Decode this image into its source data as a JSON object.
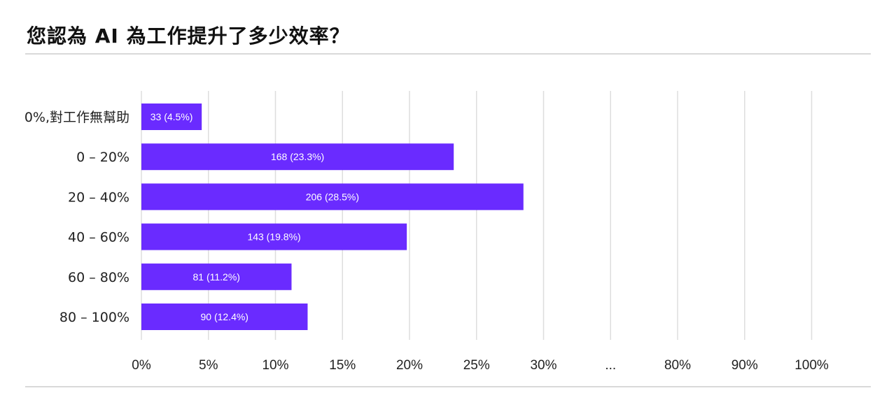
{
  "title": "您認為 AI 為工作提升了多少效率？",
  "chart_data": {
    "type": "bar",
    "orientation": "horizontal",
    "categories": [
      "0%,對工作無幫助",
      "0 – 20%",
      "20 – 40%",
      "40 – 60%",
      "60 – 80%",
      "80 – 100%"
    ],
    "values": [
      4.5,
      23.3,
      28.5,
      19.8,
      11.2,
      12.4
    ],
    "counts": [
      33,
      168,
      206,
      143,
      81,
      90
    ],
    "data_labels": [
      "33 (4.5%)",
      "168 (23.3%)",
      "206 (28.5%)",
      "143 (19.8%)",
      "81 (11.2%)",
      "90 (12.4%)"
    ],
    "x_ticks": [
      "0%",
      "5%",
      "10%",
      "15%",
      "20%",
      "25%",
      "30%",
      "...",
      "80%",
      "90%",
      "100%"
    ],
    "x_tick_values": [
      0,
      5,
      10,
      15,
      20,
      25,
      30,
      null,
      80,
      90,
      100
    ],
    "axis_break": "between 30% and 80%",
    "grid": true,
    "legend": "none",
    "bar_color": "#6a2bff",
    "grid_color": "#dedede"
  }
}
